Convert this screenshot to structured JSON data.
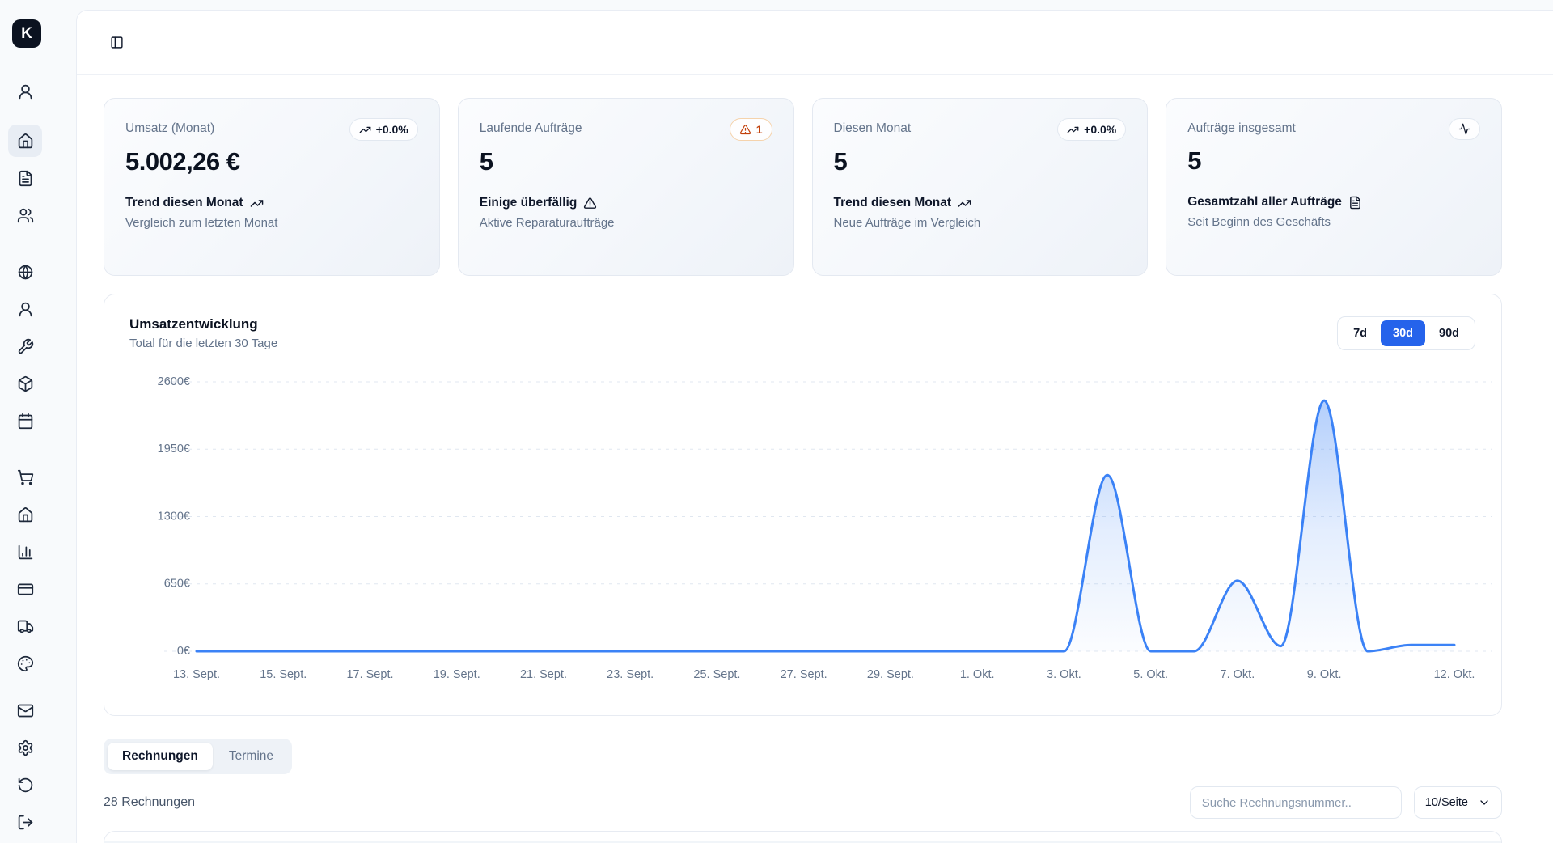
{
  "colors": {
    "accent": "#2563eb",
    "line": "#3b82f6",
    "warning": "#c2410c",
    "muted": "#64748b",
    "grid": "#e0e7f0"
  },
  "sidebar": {
    "logo": "K",
    "sections": [
      {
        "items": [
          {
            "icon": "user-round-icon",
            "active": false
          }
        ],
        "divider_after": true
      },
      {
        "items": [
          {
            "icon": "house-icon",
            "active": true
          },
          {
            "icon": "file-text-icon",
            "active": false
          },
          {
            "icon": "users-icon",
            "active": false
          }
        ]
      },
      {
        "items": [
          {
            "icon": "globe-icon",
            "active": false
          },
          {
            "icon": "user-round-icon",
            "active": false
          },
          {
            "icon": "wrench-icon",
            "active": false
          },
          {
            "icon": "package-icon",
            "active": false
          },
          {
            "icon": "calendar-icon",
            "active": false
          }
        ]
      },
      {
        "items": [
          {
            "icon": "shopping-cart-icon",
            "active": false
          },
          {
            "icon": "house-icon",
            "active": false
          },
          {
            "icon": "chart-column-icon",
            "active": false
          },
          {
            "icon": "credit-card-icon",
            "active": false
          },
          {
            "icon": "truck-icon",
            "active": false
          },
          {
            "icon": "palette-icon",
            "active": false
          }
        ]
      },
      {
        "items": [
          {
            "icon": "mail-icon",
            "active": false
          },
          {
            "icon": "settings-icon",
            "active": false
          }
        ]
      },
      {
        "items": [
          {
            "icon": "rotate-ccw-icon",
            "active": false
          },
          {
            "icon": "log-out-icon",
            "active": false
          }
        ]
      }
    ]
  },
  "header": {
    "toggle_icon": "panel-left-icon"
  },
  "stat_cards": [
    {
      "title": "Umsatz (Monat)",
      "value": "5.002,26 €",
      "badge": {
        "icon": "trending-up-icon",
        "label": "+0.0%",
        "variant": "neutral"
      },
      "footer": {
        "label": "Trend diesen Monat",
        "icon": "trending-up-icon"
      },
      "sub": "Vergleich zum letzten Monat"
    },
    {
      "title": "Laufende Aufträge",
      "value": "5",
      "badge": {
        "icon": "triangle-alert-icon",
        "label": "1",
        "variant": "warning"
      },
      "footer": {
        "label": "Einige überfällig",
        "icon": "triangle-alert-icon"
      },
      "sub": "Aktive Reparaturaufträge"
    },
    {
      "title": "Diesen Monat",
      "value": "5",
      "badge": {
        "icon": "trending-up-icon",
        "label": "+0.0%",
        "variant": "neutral"
      },
      "footer": {
        "label": "Trend diesen Monat",
        "icon": "trending-up-icon"
      },
      "sub": "Neue Aufträge im Vergleich"
    },
    {
      "title": "Aufträge insgesamt",
      "value": "5",
      "badge": {
        "icon": "activity-icon",
        "label": "",
        "variant": "neutral"
      },
      "footer": {
        "label": "Gesamtzahl aller Aufträge",
        "icon": "file-text-icon"
      },
      "sub": "Seit Beginn des Geschäfts"
    }
  ],
  "chart_data": {
    "type": "area",
    "title": "Umsatzentwicklung",
    "subtitle": "Total für die letzten 30 Tage",
    "unit": "€",
    "range_options": [
      "7d",
      "30d",
      "90d"
    ],
    "active_range": "30d",
    "ylim": [
      0,
      2600
    ],
    "y_ticks": [
      0,
      650,
      1300,
      1950,
      2600
    ],
    "x_tick_labels": [
      "13. Sept.",
      "15. Sept.",
      "17. Sept.",
      "19. Sept.",
      "21. Sept.",
      "23. Sept.",
      "25. Sept.",
      "27. Sept.",
      "29. Sept.",
      "1. Okt.",
      "3. Okt.",
      "5. Okt.",
      "7. Okt.",
      "9. Okt.",
      "12. Okt."
    ],
    "x_tick_indices": [
      0,
      2,
      4,
      6,
      8,
      10,
      12,
      14,
      16,
      18,
      20,
      22,
      24,
      26,
      29
    ],
    "values": [
      0,
      0,
      0,
      0,
      0,
      0,
      0,
      0,
      0,
      0,
      0,
      0,
      0,
      0,
      0,
      0,
      0,
      0,
      0,
      0,
      0,
      1700,
      0,
      0,
      680,
      50,
      2420,
      0,
      60,
      60
    ],
    "grid": "dashed horizontal",
    "legend": "none"
  },
  "tabs": [
    {
      "label": "Rechnungen",
      "active": true
    },
    {
      "label": "Termine",
      "active": false
    }
  ],
  "list": {
    "count_label": "28 Rechnungen",
    "search_placeholder": "Suche Rechnungsnummer..",
    "page_size": "10/Seite"
  }
}
